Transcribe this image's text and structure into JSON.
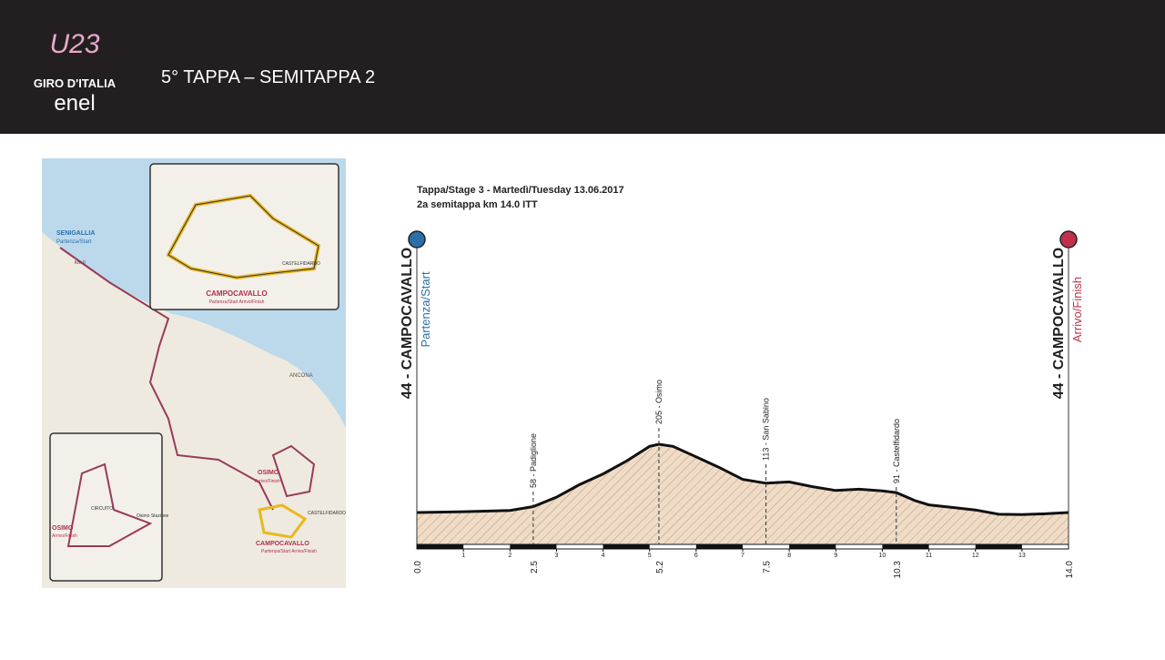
{
  "header": {
    "title": "5° TAPPA – SEMITAPPA 2",
    "logo": {
      "mark": "U23",
      "brand": "GIRO D'ITALIA",
      "sponsor": "enel"
    }
  },
  "map": {
    "labels": {
      "senigallia": "SENIGALLIA",
      "senigallia_sub": "Partenza/Start",
      "km0": "Km 0",
      "ancona": "ANCONA",
      "osimo": "OSIMO",
      "osimo_sub": "Arrivo/Finish",
      "campocavallo": "CAMPOCAVALLO",
      "campocavallo_sub": "Partenza/Start Arrivo/Finish",
      "castelfidardo": "CASTELFIDARDO",
      "inset_campocavallo": "CAMPOCAVALLO",
      "inset_sub": "Partenza/Start Arrivo/Finish",
      "inset_castelfidardo": "CASTELFIDARDO",
      "inset_osimo": "OSIMO",
      "inset_osimo_sub": "Arrivo/Finish",
      "circuito": "CIRCUITO",
      "stazione": "Osimo Stazione"
    }
  },
  "profile": {
    "title": "Tappa/Stage 3 - Martedì/Tuesday 13.06.2017",
    "subtitle": "2a semitappa km 14.0 ITT",
    "start": {
      "name": "44 - CAMPOCAVALLO",
      "sub": "Partenza/Start",
      "km": {
        "value": 0,
        "label": "0.0"
      }
    },
    "finish": {
      "name": "44 - CAMPOCAVALLO",
      "sub": "Arrivo/Finish",
      "km": {
        "value": 14,
        "label": "14.0"
      }
    },
    "waypoints": [
      {
        "label": "58 - Padiglione",
        "km": 2.5
      },
      {
        "label": "205 - Osimo",
        "km": 5.2
      },
      {
        "label": "113 - San Sabino",
        "km": 7.5
      },
      {
        "label": "91 - Castelfidardo",
        "km": 10.3
      }
    ],
    "xlim": [
      0,
      14
    ],
    "ylim": [
      0,
      250
    ],
    "xticks": [
      1,
      2,
      3,
      4,
      5,
      6,
      7,
      8,
      9,
      10,
      11,
      12,
      13
    ],
    "km": [
      0,
      1,
      2,
      2.5,
      3,
      3.5,
      4,
      4.5,
      5,
      5.2,
      5.5,
      6,
      6.5,
      7,
      7.5,
      8,
      8.5,
      9,
      9.5,
      10,
      10.3,
      10.7,
      11,
      11.5,
      12,
      12.5,
      13,
      13.5,
      14
    ],
    "elevation": [
      44,
      46,
      49,
      58,
      80,
      110,
      135,
      165,
      200,
      205,
      200,
      175,
      150,
      122,
      113,
      116,
      105,
      96,
      99,
      95,
      91,
      72,
      62,
      56,
      50,
      40,
      39,
      41,
      44
    ]
  }
}
